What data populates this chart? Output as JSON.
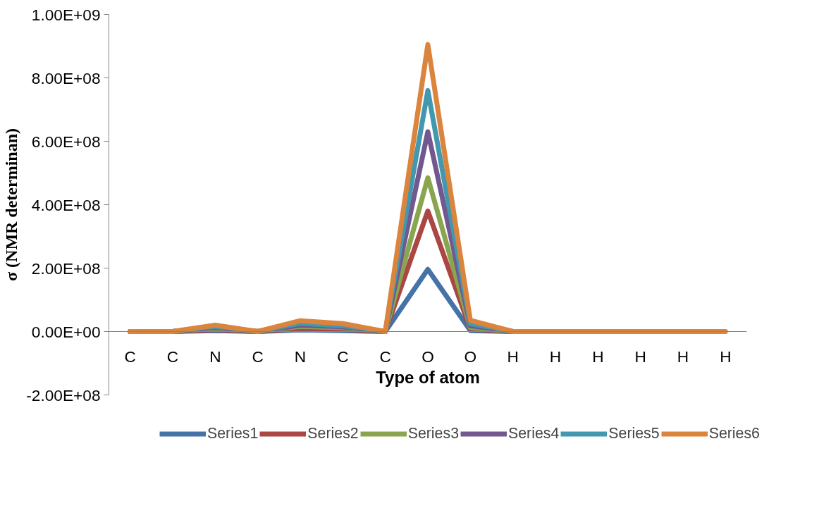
{
  "chart_data": {
    "type": "line",
    "xlabel": "Type of atom",
    "ylabel": "σ (NMR determinan)",
    "categories": [
      "C",
      "C",
      "N",
      "C",
      "N",
      "C",
      "C",
      "O",
      "O",
      "H",
      "H",
      "H",
      "H",
      "H",
      "H"
    ],
    "ylim": [
      -200000000,
      1000000000
    ],
    "yticks": [
      {
        "value": -200000000,
        "label": "-2.00E+08"
      },
      {
        "value": 0,
        "label": "0.00E+00"
      },
      {
        "value": 200000000,
        "label": "2.00E+08"
      },
      {
        "value": 400000000,
        "label": "4.00E+08"
      },
      {
        "value": 600000000,
        "label": "6.00E+08"
      },
      {
        "value": 800000000,
        "label": "8.00E+08"
      },
      {
        "value": 1000000000,
        "label": "1.00E+09"
      }
    ],
    "grid": false,
    "legend": "bottom",
    "marker": "none",
    "line_style": "solid",
    "series": [
      {
        "name": "Series1",
        "color": "#4572a7",
        "values": [
          0,
          0,
          3000000,
          0,
          5000000,
          3000000,
          0,
          196000000,
          3000000,
          0,
          null,
          null,
          null,
          null,
          null
        ]
      },
      {
        "name": "Series2",
        "color": "#aa4643",
        "values": [
          0,
          0,
          6000000,
          0,
          10000000,
          7000000,
          0,
          380000000,
          8000000,
          0,
          null,
          null,
          null,
          null,
          null
        ]
      },
      {
        "name": "Series3",
        "color": "#89a54e",
        "values": [
          0,
          0,
          10000000,
          0,
          16000000,
          12000000,
          0,
          485000000,
          12000000,
          0,
          null,
          null,
          null,
          null,
          null
        ]
      },
      {
        "name": "Series4",
        "color": "#71588f",
        "values": [
          0,
          0,
          13000000,
          0,
          20000000,
          15000000,
          0,
          630000000,
          18000000,
          0,
          null,
          null,
          null,
          null,
          null
        ]
      },
      {
        "name": "Series5",
        "color": "#4198af",
        "values": [
          0,
          0,
          16000000,
          0,
          26000000,
          18000000,
          0,
          760000000,
          25000000,
          0,
          null,
          null,
          null,
          null,
          null
        ]
      },
      {
        "name": "Series6",
        "color": "#db843d",
        "values": [
          0,
          0,
          20000000,
          0,
          34000000,
          25000000,
          0,
          905000000,
          35000000,
          0,
          0,
          0,
          0,
          0,
          0
        ]
      }
    ]
  }
}
